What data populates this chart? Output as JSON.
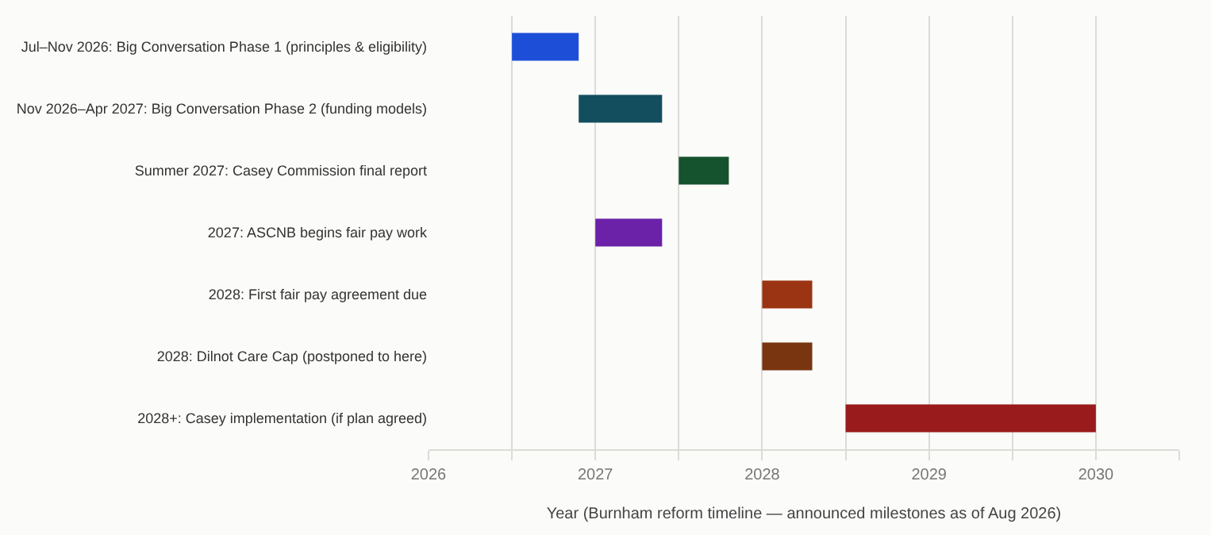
{
  "chart_data": {
    "type": "bar",
    "orientation": "horizontal",
    "xlabel": "Year (Burnham reform timeline — announced milestones as of Aug 2026)",
    "categories": [
      "Jul–Nov 2026: Big Conversation Phase 1 (principles & eligibility)",
      "Nov 2026–Apr 2027: Big Conversation Phase 2 (funding models)",
      "Summer 2027: Casey Commission final report",
      "2027: ASCNB begins fair pay work",
      "2028: First fair pay agreement due",
      "2028: Dilnot Care Cap (postponed to here)",
      "2028+: Casey implementation (if plan agreed)"
    ],
    "base": [
      2026.5,
      2026.9,
      2027.5,
      2027.0,
      2028.0,
      2028.0,
      2028.5
    ],
    "values": [
      0.4,
      0.5,
      0.3,
      0.4,
      0.3,
      0.3,
      1.5
    ],
    "colors": [
      "#1d4ed8",
      "#134e5e",
      "#14532d",
      "#6b21a8",
      "#9a3412",
      "#78350f",
      "#991b1b"
    ],
    "xlim": [
      2026,
      2030.5
    ],
    "xticks": [
      2026,
      {
        "value": 2026.5,
        "label": null
      },
      2027,
      {
        "value": 2027.5,
        "label": null
      },
      2028,
      {
        "value": 2028.5,
        "label": null
      },
      2029,
      {
        "value": 2029.5,
        "label": null
      },
      2030,
      {
        "value": 2030.5,
        "label": null
      }
    ],
    "grid": "x"
  }
}
